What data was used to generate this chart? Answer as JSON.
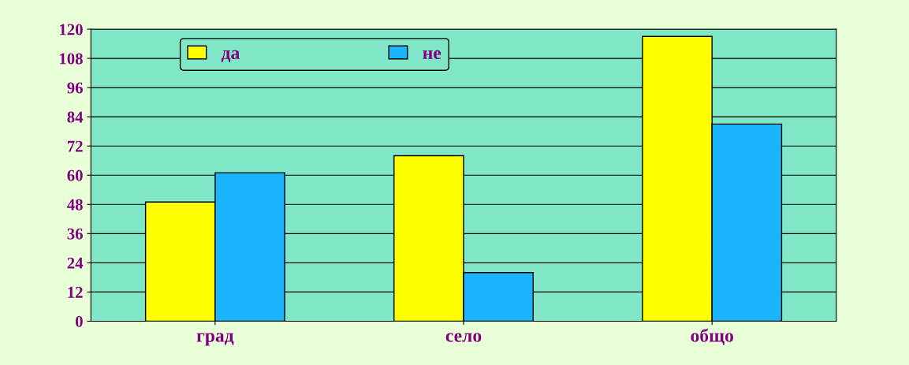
{
  "chart_data": {
    "type": "bar",
    "categories": [
      "град",
      "село",
      "общо"
    ],
    "series": [
      {
        "name": "да",
        "color": "#ffff00",
        "values": [
          49,
          68,
          117
        ]
      },
      {
        "name": "не",
        "color": "#1ab4ff",
        "values": [
          61,
          20,
          81
        ]
      }
    ],
    "ylim": [
      0,
      120
    ],
    "yticks": [
      0,
      12,
      24,
      36,
      48,
      60,
      72,
      84,
      96,
      108,
      120
    ],
    "grid": "y",
    "legend": "top"
  }
}
